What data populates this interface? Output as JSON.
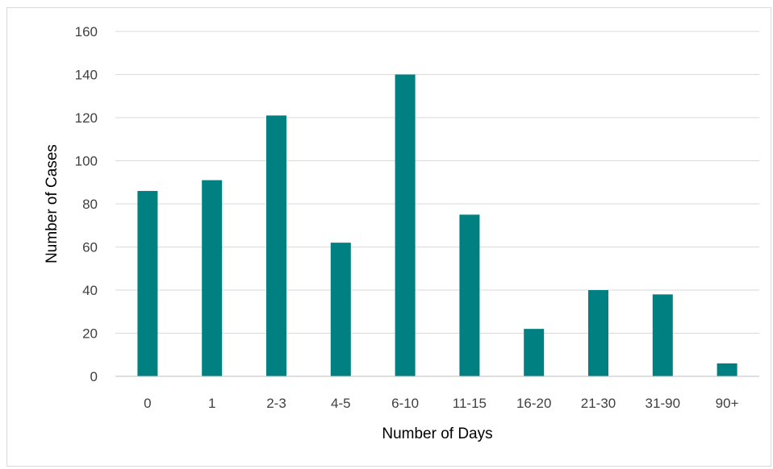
{
  "chart_data": {
    "type": "bar",
    "title": "",
    "xlabel": "Number of Days",
    "ylabel": "Number of Cases",
    "ylim": [
      0,
      160
    ],
    "yticks": [
      0,
      20,
      40,
      60,
      80,
      100,
      120,
      140,
      160
    ],
    "grid": true,
    "categories": [
      "0",
      "1",
      "2-3",
      "4-5",
      "6-10",
      "11-15",
      "16-20",
      "21-30",
      "31-90",
      "90+"
    ],
    "values": [
      86,
      91,
      121,
      62,
      140,
      75,
      22,
      40,
      38,
      6
    ],
    "bar_color": "#008080"
  }
}
